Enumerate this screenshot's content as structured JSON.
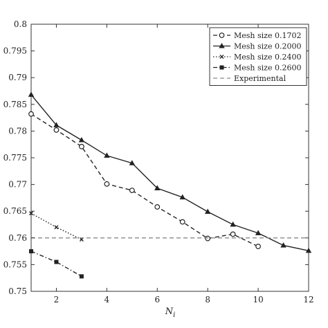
{
  "chart_data": {
    "type": "line",
    "xlabel": "N",
    "xlabel_subscript": "i",
    "ylabel": "",
    "xlim": [
      1,
      12
    ],
    "ylim": [
      0.75,
      0.8
    ],
    "xticks": [
      2,
      4,
      6,
      8,
      10,
      12
    ],
    "yticks": [
      0.75,
      0.755,
      0.76,
      0.765,
      0.77,
      0.775,
      0.78,
      0.785,
      0.79,
      0.795,
      0.8
    ],
    "legend_position": "top-right",
    "grid": false,
    "series": [
      {
        "name": "Mesh size 0.1702",
        "style": "dashed",
        "marker": "open-circle",
        "x": [
          1,
          2,
          3,
          4,
          5,
          6,
          7,
          8,
          9,
          10
        ],
        "y": [
          0.7832,
          0.7802,
          0.7771,
          0.7701,
          0.7689,
          0.7658,
          0.763,
          0.7599,
          0.7607,
          0.7584
        ]
      },
      {
        "name": "Mesh size 0.2000",
        "style": "solid",
        "marker": "triangle",
        "x": [
          1,
          2,
          3,
          4,
          5,
          6,
          7,
          8,
          9,
          10,
          11,
          12
        ],
        "y": [
          0.7868,
          0.7811,
          0.7783,
          0.7754,
          0.774,
          0.7693,
          0.7676,
          0.7649,
          0.7625,
          0.7609,
          0.7586,
          0.7576
        ]
      },
      {
        "name": "Mesh size 0.2400",
        "style": "dotted",
        "marker": "x",
        "x": [
          1,
          2,
          3
        ],
        "y": [
          0.7646,
          0.762,
          0.7597
        ]
      },
      {
        "name": "Mesh size 0.2600",
        "style": "dashdot",
        "marker": "square",
        "x": [
          1,
          2,
          3
        ],
        "y": [
          0.7575,
          0.7555,
          0.7528
        ]
      },
      {
        "name": "Experimental",
        "style": "dashed",
        "marker": "none",
        "color": "#8a8a8a",
        "x": [
          1,
          12
        ],
        "y": [
          0.76,
          0.76
        ]
      }
    ]
  }
}
